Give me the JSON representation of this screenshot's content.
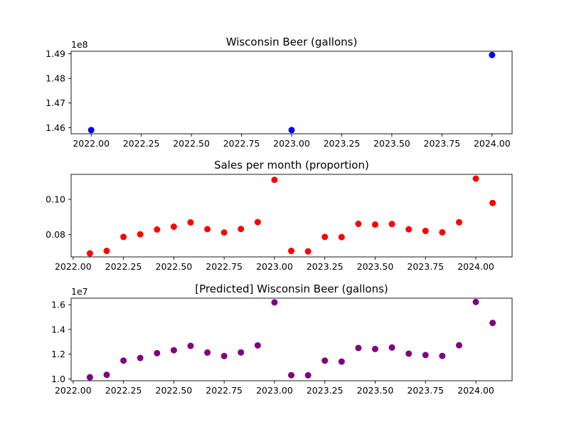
{
  "chart_data": [
    {
      "type": "scatter",
      "title": "Wisconsin Beer (gallons)",
      "xlabel": "",
      "ylabel": "",
      "y_offset_label": "1e8",
      "color": "#0000ff",
      "xlim": [
        2021.9,
        2024.1
      ],
      "ylim": [
        145750000,
        149100000
      ],
      "xticks": [
        2022.0,
        2022.25,
        2022.5,
        2022.75,
        2023.0,
        2023.25,
        2023.5,
        2023.75,
        2024.0
      ],
      "xtick_labels": [
        "2022.00",
        "2022.25",
        "2022.50",
        "2022.75",
        "2023.00",
        "2023.25",
        "2023.50",
        "2023.75",
        "2024.00"
      ],
      "yticks": [
        146000000,
        147000000,
        148000000,
        149000000
      ],
      "ytick_labels": [
        "1.46",
        "1.47",
        "1.48",
        "1.49"
      ],
      "x": [
        2022.0,
        2023.0,
        2024.0
      ],
      "y": [
        145900000,
        145900000,
        148950000
      ]
    },
    {
      "type": "scatter",
      "title": "Sales per month (proportion)",
      "xlabel": "",
      "ylabel": "",
      "y_offset_label": "",
      "color": "#ff0000",
      "xlim": [
        2021.99,
        2024.18
      ],
      "ylim": [
        0.0674,
        0.1141
      ],
      "xticks": [
        2022.0,
        2022.25,
        2022.5,
        2022.75,
        2023.0,
        2023.25,
        2023.5,
        2023.75,
        2024.0
      ],
      "xtick_labels": [
        "2022.00",
        "2022.25",
        "2022.50",
        "2022.75",
        "2023.00",
        "2023.25",
        "2023.50",
        "2023.75",
        "2024.00"
      ],
      "yticks": [
        0.08,
        0.1
      ],
      "ytick_labels": [
        "0.08",
        "0.10"
      ],
      "x": [
        2022.0833,
        2022.1667,
        2022.25,
        2022.3333,
        2022.4167,
        2022.5,
        2022.5833,
        2022.6667,
        2022.75,
        2022.8333,
        2022.9167,
        2023.0,
        2023.0833,
        2023.1667,
        2023.25,
        2023.3333,
        2023.4167,
        2023.5,
        2023.5833,
        2023.6667,
        2023.75,
        2023.8333,
        2023.9167,
        2024.0,
        2024.0833
      ],
      "y": [
        0.0694,
        0.0708,
        0.0787,
        0.0802,
        0.0829,
        0.0845,
        0.0869,
        0.0831,
        0.0812,
        0.0832,
        0.0871,
        0.111,
        0.0708,
        0.0705,
        0.0787,
        0.0786,
        0.0861,
        0.0857,
        0.086,
        0.083,
        0.0821,
        0.0813,
        0.087,
        0.1117,
        0.0979
      ]
    },
    {
      "type": "scatter",
      "title": "[Predicted] Wisconsin Beer (gallons)",
      "xlabel": "",
      "ylabel": "",
      "y_offset_label": "1e7",
      "color": "#800080",
      "xlim": [
        2021.99,
        2024.18
      ],
      "ylim": [
        9850000,
        16530000
      ],
      "xticks": [
        2022.0,
        2022.25,
        2022.5,
        2022.75,
        2023.0,
        2023.25,
        2023.5,
        2023.75,
        2024.0
      ],
      "xtick_labels": [
        "2022.00",
        "2022.25",
        "2022.50",
        "2022.75",
        "2023.00",
        "2023.25",
        "2023.50",
        "2023.75",
        "2024.00"
      ],
      "yticks": [
        10000000,
        12000000,
        14000000,
        16000000
      ],
      "ytick_labels": [
        "1.0",
        "1.2",
        "1.4",
        "1.6"
      ],
      "x": [
        2022.0833,
        2022.1667,
        2022.25,
        2022.3333,
        2022.4167,
        2022.5,
        2022.5833,
        2022.6667,
        2022.75,
        2022.8333,
        2022.9167,
        2023.0,
        2023.0833,
        2023.1667,
        2023.25,
        2023.3333,
        2023.4167,
        2023.5,
        2023.5833,
        2023.6667,
        2023.75,
        2023.8333,
        2023.9167,
        2024.0,
        2024.0833
      ],
      "y": [
        10130000,
        10330000,
        11480000,
        11690000,
        12080000,
        12320000,
        12670000,
        12130000,
        11850000,
        12140000,
        12710000,
        16190000,
        10300000,
        10290000,
        11480000,
        11400000,
        12500000,
        12420000,
        12540000,
        12040000,
        11930000,
        11860000,
        12720000,
        16220000,
        14530000
      ]
    }
  ]
}
